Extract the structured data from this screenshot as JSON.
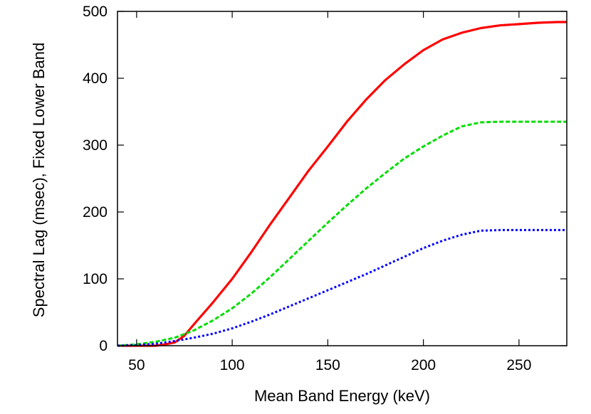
{
  "chart_data": {
    "type": "line",
    "title": "",
    "xlabel": "Mean Band Energy (keV)",
    "ylabel": "Spectral Lag (msec), Fixed Lower Band",
    "xlim": [
      40,
      275
    ],
    "ylim": [
      0,
      500
    ],
    "xticks": [
      50,
      100,
      150,
      200,
      250
    ],
    "yticks": [
      0,
      100,
      200,
      300,
      400,
      500
    ],
    "grid": false,
    "legend": "none",
    "series": [
      {
        "name": "red",
        "color": "#ff0000",
        "style": "solid",
        "x": [
          40,
          50,
          60,
          65,
          70,
          75,
          80,
          90,
          100,
          110,
          120,
          130,
          140,
          150,
          160,
          170,
          180,
          190,
          200,
          210,
          220,
          230,
          240,
          250,
          260,
          270,
          275
        ],
        "y": [
          0,
          0,
          0,
          2,
          5,
          15,
          32,
          65,
          100,
          140,
          182,
          222,
          262,
          298,
          335,
          368,
          397,
          421,
          442,
          458,
          468,
          475,
          479,
          481,
          483,
          484,
          484
        ]
      },
      {
        "name": "green",
        "color": "#00dd00",
        "style": "dashed",
        "x": [
          40,
          50,
          60,
          70,
          80,
          90,
          100,
          110,
          120,
          130,
          140,
          150,
          160,
          170,
          180,
          190,
          200,
          210,
          220,
          230,
          240,
          250,
          260,
          275
        ],
        "y": [
          0,
          2,
          6,
          12,
          23,
          38,
          56,
          78,
          103,
          130,
          157,
          184,
          210,
          235,
          258,
          280,
          298,
          314,
          328,
          334,
          335,
          335,
          335,
          335
        ]
      },
      {
        "name": "blue",
        "color": "#0000ff",
        "style": "dotted",
        "x": [
          40,
          50,
          60,
          70,
          80,
          90,
          100,
          110,
          120,
          130,
          140,
          150,
          160,
          170,
          180,
          190,
          200,
          210,
          220,
          230,
          240,
          250,
          260,
          275
        ],
        "y": [
          0,
          1,
          3,
          7,
          12,
          18,
          26,
          36,
          47,
          59,
          71,
          83,
          95,
          107,
          120,
          133,
          146,
          157,
          166,
          172,
          173,
          173,
          173,
          173
        ]
      }
    ]
  }
}
